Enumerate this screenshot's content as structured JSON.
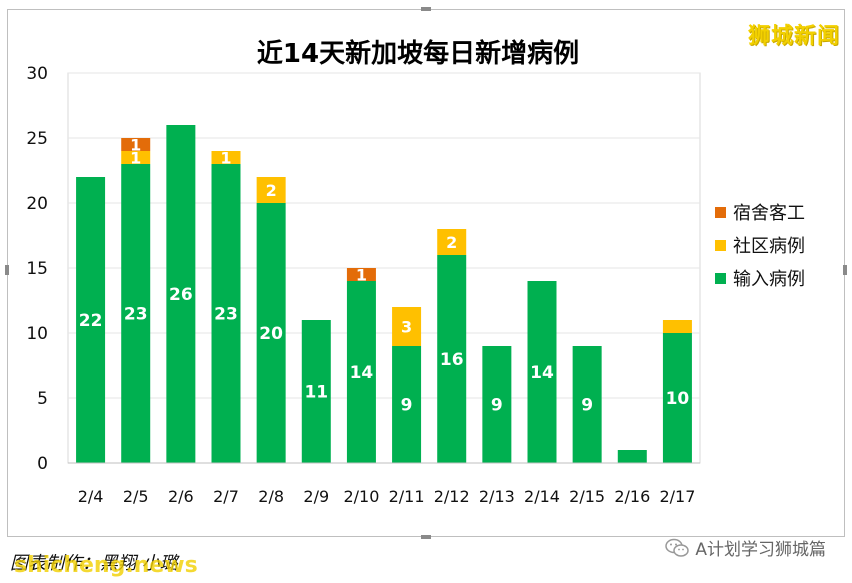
{
  "watermarks": {
    "top_right": "狮城新闻",
    "bottom_left": "shicheng.news"
  },
  "caption": "图表制作：黑翔 小璐",
  "wechat_account": "A计划学习狮城篇",
  "colors": {
    "imported": "#00b050",
    "community": "#ffc000",
    "dormitory": "#e36c09"
  },
  "chart_data": {
    "type": "bar",
    "stacked": true,
    "title": "近14天新加坡每日新增病例",
    "categories": [
      "2/4",
      "2/5",
      "2/6",
      "2/7",
      "2/8",
      "2/9",
      "2/10",
      "2/11",
      "2/12",
      "2/13",
      "2/14",
      "2/15",
      "2/16",
      "2/17"
    ],
    "series": [
      {
        "name": "输入病例",
        "values": [
          22,
          23,
          26,
          23,
          20,
          11,
          14,
          9,
          16,
          9,
          14,
          9,
          1,
          10
        ]
      },
      {
        "name": "社区病例",
        "values": [
          0,
          1,
          0,
          1,
          2,
          0,
          0,
          3,
          2,
          0,
          0,
          0,
          0,
          1
        ]
      },
      {
        "name": "宿舍客工",
        "values": [
          0,
          1,
          0,
          0,
          0,
          0,
          1,
          0,
          0,
          0,
          0,
          0,
          0,
          0
        ]
      }
    ],
    "data_labels": [
      [
        "22",
        "23",
        "26",
        "23",
        "20",
        "11",
        "14",
        "9",
        "16",
        "9",
        "14",
        "9",
        "",
        "10"
      ],
      [
        "",
        "1",
        "",
        "1",
        "2",
        "",
        "",
        "3",
        "2",
        "",
        "",
        "",
        "",
        ""
      ],
      [
        "",
        "1",
        "",
        "",
        "",
        "",
        "1",
        "",
        "",
        "",
        "",
        "",
        "",
        ""
      ]
    ],
    "ylim": [
      0,
      30
    ],
    "yticks": [
      0,
      5,
      10,
      15,
      20,
      25,
      30
    ],
    "grid": true,
    "legend_position": "right",
    "legend_order": [
      "宿舍客工",
      "社区病例",
      "输入病例"
    ]
  }
}
